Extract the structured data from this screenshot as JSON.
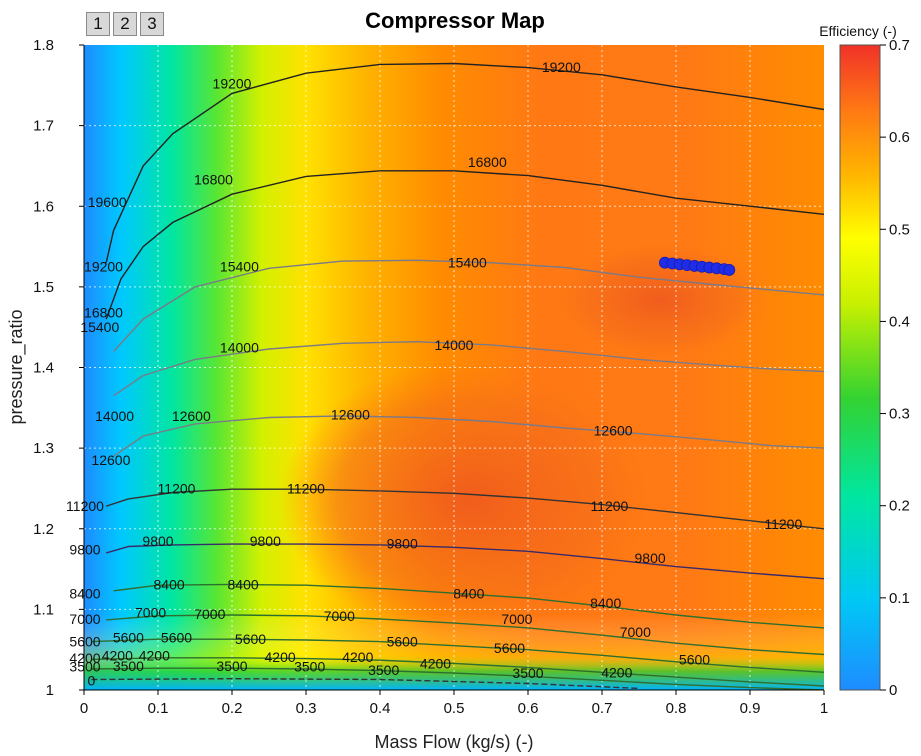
{
  "toolbar": {
    "buttons": [
      "1",
      "2",
      "3"
    ]
  },
  "chart_data": {
    "type": "contour",
    "title": "Compressor Map",
    "xlabel": "Mass Flow (kg/s) (-)",
    "ylabel": "pressure_ratio",
    "xlim": [
      0,
      1
    ],
    "ylim": [
      1,
      1.8
    ],
    "x_ticks": [
      "0",
      "0.1",
      "0.2",
      "0.3",
      "0.4",
      "0.5",
      "0.6",
      "0.7",
      "0.8",
      "0.9",
      "1"
    ],
    "y_ticks": [
      "1",
      "1.1",
      "1.2",
      "1.3",
      "1.4",
      "1.5",
      "1.6",
      "1.7",
      "1.8"
    ],
    "grid": true,
    "colorbar": {
      "label": "Efficiency (-)",
      "range": [
        0,
        0.7
      ],
      "ticks": [
        "0",
        "0.1",
        "0.2",
        "0.3",
        "0.4",
        "0.5",
        "0.6",
        "0.7"
      ],
      "colors": [
        "#1e8cff",
        "#00d2f0",
        "#00e68c",
        "#32d232",
        "#c8f000",
        "#ffff00",
        "#ffc800",
        "#ff9600",
        "#ff6e1e",
        "#f03c28"
      ]
    },
    "speed_lines": [
      {
        "speed": 19200,
        "color": "#222222",
        "points": [
          [
            0.03,
            1.53
          ],
          [
            0.04,
            1.57
          ],
          [
            0.06,
            1.61
          ],
          [
            0.08,
            1.65
          ],
          [
            0.12,
            1.69
          ],
          [
            0.2,
            1.74
          ],
          [
            0.3,
            1.765
          ],
          [
            0.4,
            1.776
          ],
          [
            0.5,
            1.777
          ],
          [
            0.6,
            1.772
          ],
          [
            0.7,
            1.763
          ],
          [
            0.8,
            1.748
          ],
          [
            0.9,
            1.735
          ],
          [
            1.0,
            1.72
          ]
        ]
      },
      {
        "speed": 16800,
        "color": "#222222",
        "points": [
          [
            0.03,
            1.46
          ],
          [
            0.05,
            1.51
          ],
          [
            0.08,
            1.55
          ],
          [
            0.12,
            1.58
          ],
          [
            0.2,
            1.615
          ],
          [
            0.3,
            1.637
          ],
          [
            0.4,
            1.644
          ],
          [
            0.5,
            1.644
          ],
          [
            0.6,
            1.638
          ],
          [
            0.7,
            1.626
          ],
          [
            0.8,
            1.61
          ],
          [
            0.9,
            1.6
          ],
          [
            1.0,
            1.59
          ]
        ]
      },
      {
        "speed": 15400,
        "color": "#7a7a88",
        "points": [
          [
            0.04,
            1.42
          ],
          [
            0.08,
            1.46
          ],
          [
            0.15,
            1.5
          ],
          [
            0.25,
            1.523
          ],
          [
            0.35,
            1.532
          ],
          [
            0.45,
            1.533
          ],
          [
            0.55,
            1.53
          ],
          [
            0.65,
            1.524
          ],
          [
            0.75,
            1.512
          ],
          [
            0.85,
            1.503
          ],
          [
            0.93,
            1.496
          ],
          [
            1.0,
            1.49
          ]
        ]
      },
      {
        "speed": 14000,
        "color": "#7a7a88",
        "points": [
          [
            0.04,
            1.365
          ],
          [
            0.08,
            1.39
          ],
          [
            0.15,
            1.41
          ],
          [
            0.25,
            1.423
          ],
          [
            0.35,
            1.43
          ],
          [
            0.45,
            1.432
          ],
          [
            0.55,
            1.428
          ],
          [
            0.65,
            1.42
          ],
          [
            0.75,
            1.41
          ],
          [
            0.85,
            1.403
          ],
          [
            0.93,
            1.398
          ],
          [
            1.0,
            1.395
          ]
        ]
      },
      {
        "speed": 12600,
        "color": "#7a7a88",
        "points": [
          [
            0.04,
            1.29
          ],
          [
            0.08,
            1.315
          ],
          [
            0.15,
            1.33
          ],
          [
            0.25,
            1.338
          ],
          [
            0.35,
            1.34
          ],
          [
            0.45,
            1.338
          ],
          [
            0.55,
            1.333
          ],
          [
            0.65,
            1.325
          ],
          [
            0.75,
            1.318
          ],
          [
            0.85,
            1.31
          ],
          [
            0.93,
            1.303
          ],
          [
            1.0,
            1.3
          ]
        ]
      },
      {
        "speed": 11200,
        "color": "#333333",
        "points": [
          [
            0.03,
            1.228
          ],
          [
            0.06,
            1.237
          ],
          [
            0.12,
            1.245
          ],
          [
            0.2,
            1.249
          ],
          [
            0.3,
            1.249
          ],
          [
            0.4,
            1.247
          ],
          [
            0.5,
            1.244
          ],
          [
            0.6,
            1.238
          ],
          [
            0.7,
            1.23
          ],
          [
            0.8,
            1.22
          ],
          [
            0.9,
            1.21
          ],
          [
            1.0,
            1.2
          ]
        ]
      },
      {
        "speed": 9800,
        "color": "#3a2a6a",
        "points": [
          [
            0.03,
            1.17
          ],
          [
            0.06,
            1.178
          ],
          [
            0.12,
            1.18
          ],
          [
            0.2,
            1.181
          ],
          [
            0.3,
            1.181
          ],
          [
            0.4,
            1.18
          ],
          [
            0.5,
            1.177
          ],
          [
            0.6,
            1.172
          ],
          [
            0.7,
            1.163
          ],
          [
            0.8,
            1.153
          ],
          [
            0.9,
            1.145
          ],
          [
            1.0,
            1.138
          ]
        ]
      },
      {
        "speed": 8400,
        "color": "#2e6e2e",
        "points": [
          [
            0.04,
            1.123
          ],
          [
            0.1,
            1.13
          ],
          [
            0.2,
            1.131
          ],
          [
            0.3,
            1.13
          ],
          [
            0.4,
            1.126
          ],
          [
            0.5,
            1.12
          ],
          [
            0.6,
            1.114
          ],
          [
            0.7,
            1.104
          ],
          [
            0.8,
            1.093
          ],
          [
            0.9,
            1.084
          ],
          [
            1.0,
            1.077
          ]
        ]
      },
      {
        "speed": 7000,
        "color": "#2e6e2e",
        "points": [
          [
            0.03,
            1.087
          ],
          [
            0.1,
            1.092
          ],
          [
            0.2,
            1.093
          ],
          [
            0.3,
            1.092
          ],
          [
            0.4,
            1.088
          ],
          [
            0.5,
            1.083
          ],
          [
            0.6,
            1.077
          ],
          [
            0.7,
            1.068
          ],
          [
            0.8,
            1.058
          ],
          [
            0.9,
            1.05
          ],
          [
            1.0,
            1.044
          ]
        ]
      },
      {
        "speed": 5600,
        "color": "#2e6e2e",
        "points": [
          [
            0.01,
            1.06
          ],
          [
            0.1,
            1.063
          ],
          [
            0.2,
            1.063
          ],
          [
            0.3,
            1.062
          ],
          [
            0.4,
            1.06
          ],
          [
            0.5,
            1.055
          ],
          [
            0.6,
            1.05
          ],
          [
            0.7,
            1.043
          ],
          [
            0.8,
            1.035
          ],
          [
            0.9,
            1.028
          ],
          [
            1.0,
            1.022
          ]
        ]
      },
      {
        "speed": 4200,
        "color": "#2e6e2e",
        "points": [
          [
            0.01,
            1.038
          ],
          [
            0.1,
            1.04
          ],
          [
            0.2,
            1.04
          ],
          [
            0.3,
            1.039
          ],
          [
            0.4,
            1.037
          ],
          [
            0.5,
            1.033
          ],
          [
            0.6,
            1.028
          ],
          [
            0.7,
            1.022
          ],
          [
            0.8,
            1.016
          ],
          [
            0.9,
            1.01
          ],
          [
            1.0,
            1.005
          ]
        ]
      },
      {
        "speed": 3500,
        "color": "#2e6e2e",
        "points": [
          [
            0.01,
            1.026
          ],
          [
            0.1,
            1.027
          ],
          [
            0.2,
            1.027
          ],
          [
            0.3,
            1.026
          ],
          [
            0.4,
            1.024
          ],
          [
            0.5,
            1.021
          ],
          [
            0.6,
            1.017
          ],
          [
            0.7,
            1.012
          ],
          [
            0.8,
            1.007
          ],
          [
            0.9,
            1.003
          ],
          [
            1.0,
            1.0
          ]
        ]
      },
      {
        "speed": 0,
        "color": "#333333",
        "dashed": true,
        "points": [
          [
            0.01,
            1.013
          ],
          [
            0.2,
            1.014
          ],
          [
            0.4,
            1.013
          ],
          [
            0.6,
            1.008
          ],
          [
            0.75,
            1.002
          ]
        ]
      }
    ],
    "contour_labels": [
      {
        "text": "19200",
        "x": 0.2,
        "y": 1.752
      },
      {
        "text": "19200",
        "x": 0.645,
        "y": 1.773
      },
      {
        "text": "16800",
        "x": 0.175,
        "y": 1.633
      },
      {
        "text": "16800",
        "x": 0.545,
        "y": 1.655
      },
      {
        "text": "15400",
        "x": 0.21,
        "y": 1.525
      },
      {
        "text": "15400",
        "x": 0.518,
        "y": 1.53
      },
      {
        "text": "14000",
        "x": 0.21,
        "y": 1.425
      },
      {
        "text": "14000",
        "x": 0.5,
        "y": 1.428
      },
      {
        "text": "12600",
        "x": 0.145,
        "y": 1.34
      },
      {
        "text": "12600",
        "x": 0.36,
        "y": 1.342
      },
      {
        "text": "12600",
        "x": 0.715,
        "y": 1.322
      },
      {
        "text": "11200",
        "x": 0.125,
        "y": 1.25
      },
      {
        "text": "11200",
        "x": 0.3,
        "y": 1.25
      },
      {
        "text": "11200",
        "x": 0.71,
        "y": 1.228
      },
      {
        "text": "11200",
        "x": 0.945,
        "y": 1.206
      },
      {
        "text": "9800",
        "x": 0.1,
        "y": 1.185
      },
      {
        "text": "9800",
        "x": 0.245,
        "y": 1.185
      },
      {
        "text": "9800",
        "x": 0.43,
        "y": 1.182
      },
      {
        "text": "9800",
        "x": 0.765,
        "y": 1.164
      },
      {
        "text": "8400",
        "x": 0.115,
        "y": 1.131
      },
      {
        "text": "8400",
        "x": 0.215,
        "y": 1.131
      },
      {
        "text": "8400",
        "x": 0.52,
        "y": 1.12
      },
      {
        "text": "8400",
        "x": 0.705,
        "y": 1.108
      },
      {
        "text": "7000",
        "x": 0.09,
        "y": 1.096
      },
      {
        "text": "7000",
        "x": 0.17,
        "y": 1.094
      },
      {
        "text": "7000",
        "x": 0.345,
        "y": 1.092
      },
      {
        "text": "7000",
        "x": 0.585,
        "y": 1.088
      },
      {
        "text": "7000",
        "x": 0.745,
        "y": 1.072
      },
      {
        "text": "5600",
        "x": 0.06,
        "y": 1.065
      },
      {
        "text": "5600",
        "x": 0.125,
        "y": 1.065
      },
      {
        "text": "5600",
        "x": 0.225,
        "y": 1.063
      },
      {
        "text": "5600",
        "x": 0.43,
        "y": 1.06
      },
      {
        "text": "5600",
        "x": 0.575,
        "y": 1.052
      },
      {
        "text": "5600",
        "x": 0.825,
        "y": 1.038
      },
      {
        "text": "4200",
        "x": 0.045,
        "y": 1.043
      },
      {
        "text": "4200",
        "x": 0.095,
        "y": 1.043
      },
      {
        "text": "4200",
        "x": 0.265,
        "y": 1.041
      },
      {
        "text": "4200",
        "x": 0.37,
        "y": 1.041
      },
      {
        "text": "4200",
        "x": 0.475,
        "y": 1.033
      },
      {
        "text": "4200",
        "x": 0.72,
        "y": 1.022
      },
      {
        "text": "3500",
        "x": 0.06,
        "y": 1.03
      },
      {
        "text": "3500",
        "x": 0.2,
        "y": 1.03
      },
      {
        "text": "3500",
        "x": 0.305,
        "y": 1.029
      },
      {
        "text": "3500",
        "x": 0.405,
        "y": 1.025
      },
      {
        "text": "3500",
        "x": 0.6,
        "y": 1.021
      },
      {
        "text": "0",
        "x": 0.01,
        "y": 1.012
      }
    ],
    "operating_points": [
      [
        0.785,
        1.53
      ],
      [
        0.795,
        1.529
      ],
      [
        0.805,
        1.528
      ],
      [
        0.815,
        1.527
      ],
      [
        0.825,
        1.526
      ],
      [
        0.835,
        1.525
      ],
      [
        0.845,
        1.524
      ],
      [
        0.855,
        1.523
      ],
      [
        0.865,
        1.522
      ],
      [
        0.872,
        1.521
      ]
    ],
    "edge_labels": [
      {
        "text": "19600",
        "x": 0.03,
        "y": 1.605
      },
      {
        "text": "19200",
        "x": 0.025,
        "y": 1.525
      },
      {
        "text": "16800",
        "x": 0.025,
        "y": 1.468
      },
      {
        "text": "15400",
        "x": 0.02,
        "y": 1.45
      },
      {
        "text": "14000",
        "x": 0.04,
        "y": 1.34
      },
      {
        "text": "12600",
        "x": 0.035,
        "y": 1.285
      },
      {
        "text": "11200",
        "x": 0.0,
        "y": 1.228
      },
      {
        "text": "9800",
        "x": 0.0,
        "y": 1.174
      },
      {
        "text": "8400",
        "x": 0.0,
        "y": 1.12
      },
      {
        "text": "7000",
        "x": 0.0,
        "y": 1.088
      },
      {
        "text": "5600",
        "x": 0.0,
        "y": 1.06
      },
      {
        "text": "4200",
        "x": 0.0,
        "y": 1.04
      },
      {
        "text": "3500",
        "x": 0.0,
        "y": 1.029
      }
    ]
  }
}
